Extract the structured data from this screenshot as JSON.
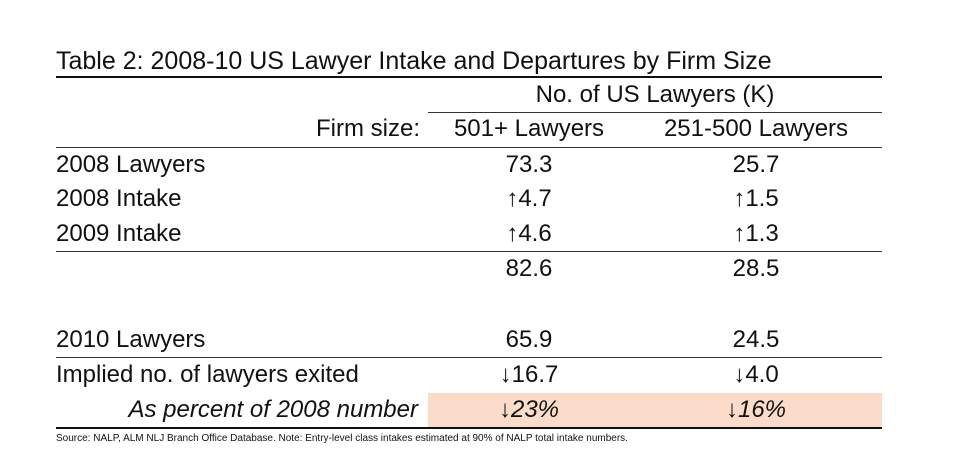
{
  "table": {
    "title": "Table 2: 2008-10 US Lawyer Intake and Departures by Firm Size",
    "group_header": "No. of US Lawyers (K)",
    "firm_size_label": "Firm size:",
    "columns": [
      "501+ Lawyers",
      "251-500 Lawyers"
    ],
    "rows": [
      {
        "label": "2008 Lawyers",
        "values": [
          "73.3",
          "25.7"
        ]
      },
      {
        "label": "2008 Intake",
        "values": [
          "↑4.7",
          "↑1.5"
        ]
      },
      {
        "label": "2009 Intake",
        "values": [
          "↑4.6",
          "↑1.3"
        ]
      },
      {
        "label": "",
        "values": [
          "82.6",
          "28.5"
        ]
      },
      {
        "label": "2010 Lawyers",
        "values": [
          "65.9",
          "24.5"
        ]
      },
      {
        "label": "Implied no. of lawyers exited",
        "values": [
          "↓16.7",
          "↓4.0"
        ]
      },
      {
        "label": "As percent of 2008 number",
        "values": [
          "↓23%",
          "↓16%"
        ]
      }
    ],
    "highlight_color": "#fbdccb"
  },
  "source_note": "Source: NALP, ALM NLJ Branch Office Database. Note: Entry-level class intakes estimated at 90% of NALP total intake numbers."
}
